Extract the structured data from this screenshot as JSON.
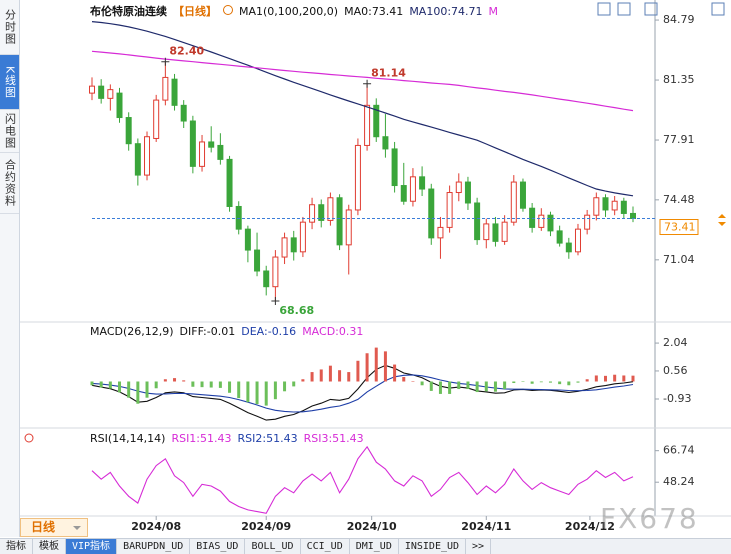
{
  "sidebar_tabs": [
    "分时图",
    "K线图",
    "闪电图",
    "合约资料"
  ],
  "active_sidebar_tab": 1,
  "chart_data": [
    {
      "type": "candlestick",
      "title": "布伦特原油连续",
      "period_label": "【日线】",
      "indicator": "MA1(0,100,200,0)",
      "ma0": {
        "label": "MA0:",
        "current": 73.41
      },
      "xlim": [
        0,
        59
      ],
      "ylim": [
        67.59,
        85.94
      ],
      "yticks": [
        84.79,
        81.35,
        77.91,
        74.48,
        71.04
      ],
      "xticks": [
        {
          "value": 7,
          "label": "2024/08"
        },
        {
          "value": 19,
          "label": "2024/09"
        },
        {
          "value": 30.5,
          "label": "2024/10"
        },
        {
          "value": 43,
          "label": "2024/11"
        },
        {
          "value": 54.3,
          "label": "2024/12"
        }
      ],
      "up_color": "#e03c31",
      "down_color": "#3aa53a",
      "candles": {
        "open": [
          80.6,
          81.0,
          80.3,
          80.6,
          79.2,
          77.7,
          75.9,
          78.0,
          80.2,
          81.4,
          79.9,
          79.0,
          76.4,
          77.8,
          77.6,
          76.8,
          74.1,
          72.8,
          71.6,
          70.4,
          69.5,
          71.2,
          72.3,
          71.5,
          73.2,
          74.2,
          73.3,
          74.6,
          71.9,
          73.9,
          77.6,
          79.9,
          78.1,
          77.4,
          75.3,
          74.4,
          75.8,
          75.1,
          72.3,
          72.9,
          74.9,
          75.5,
          74.3,
          72.2,
          73.1,
          72.1,
          73.2,
          75.5,
          74.0,
          72.9,
          73.6,
          72.7,
          72.0,
          71.5,
          72.8,
          73.6,
          74.6,
          73.9,
          74.4,
          73.7
        ],
        "high": [
          81.5,
          81.4,
          81.1,
          80.9,
          79.5,
          78.0,
          78.4,
          80.5,
          82.4,
          81.7,
          80.2,
          79.3,
          78.2,
          78.7,
          78.3,
          77.0,
          74.4,
          73.0,
          72.6,
          70.7,
          71.6,
          72.6,
          72.7,
          73.5,
          74.6,
          74.5,
          74.9,
          74.8,
          74.2,
          78.0,
          81.14,
          80.3,
          79.4,
          77.8,
          76.6,
          76.3,
          76.4,
          75.4,
          73.5,
          75.3,
          76.0,
          75.8,
          74.6,
          73.4,
          73.5,
          73.6,
          75.9,
          75.7,
          74.3,
          74.0,
          73.8,
          73.0,
          72.3,
          73.1,
          73.9,
          74.9,
          74.8,
          74.7,
          74.6,
          74.1
        ],
        "low": [
          80.2,
          80.0,
          79.6,
          78.9,
          77.3,
          75.3,
          75.6,
          77.8,
          79.9,
          79.6,
          78.6,
          76.0,
          76.1,
          77.2,
          76.5,
          73.8,
          72.5,
          70.9,
          70.1,
          69.0,
          68.68,
          70.8,
          71.0,
          71.2,
          72.8,
          72.9,
          73.0,
          71.6,
          70.2,
          73.6,
          77.3,
          77.8,
          76.9,
          74.9,
          74.2,
          74.1,
          74.7,
          71.9,
          71.1,
          72.6,
          74.4,
          73.9,
          71.9,
          71.7,
          71.8,
          71.9,
          73.0,
          73.8,
          72.6,
          72.7,
          72.4,
          71.8,
          71.1,
          71.3,
          72.5,
          73.3,
          73.5,
          73.6,
          73.4,
          73.2
        ],
        "close": [
          81.0,
          80.3,
          80.8,
          79.2,
          77.7,
          75.9,
          78.1,
          80.2,
          81.5,
          79.9,
          79.0,
          76.4,
          77.8,
          77.5,
          76.8,
          74.1,
          72.8,
          71.6,
          70.4,
          69.5,
          71.2,
          72.3,
          71.5,
          73.2,
          74.2,
          73.3,
          74.6,
          71.9,
          73.9,
          77.6,
          79.9,
          78.1,
          77.4,
          75.3,
          74.4,
          75.8,
          75.1,
          72.3,
          72.9,
          74.9,
          75.5,
          74.3,
          72.2,
          73.1,
          72.1,
          73.2,
          75.5,
          74.0,
          72.9,
          73.6,
          72.7,
          72.0,
          71.5,
          72.8,
          73.6,
          74.6,
          73.9,
          74.4,
          73.7,
          73.41
        ]
      },
      "series": [
        {
          "label": "MA100:",
          "current": 74.71,
          "color": "#1f2a6b",
          "values": [
            84.7,
            84.65,
            84.58,
            84.5,
            84.4,
            84.28,
            84.15,
            84.0,
            83.85,
            83.68,
            83.5,
            83.32,
            83.14,
            82.96,
            82.77,
            82.58,
            82.39,
            82.2,
            82.0,
            81.8,
            81.6,
            81.41,
            81.22,
            81.04,
            80.86,
            80.68,
            80.5,
            80.32,
            80.15,
            79.98,
            79.81,
            79.64,
            79.46,
            79.28,
            79.1,
            78.95,
            78.8,
            78.65,
            78.5,
            78.35,
            78.2,
            78.05,
            77.9,
            77.68,
            77.46,
            77.24,
            77.02,
            76.8,
            76.6,
            76.4,
            76.18,
            75.96,
            75.74,
            75.52,
            75.3,
            75.1,
            74.98,
            74.88,
            74.79,
            74.71
          ]
        },
        {
          "label": "M",
          "color": "#d62bd6",
          "values": [
            83.0,
            82.95,
            82.9,
            82.85,
            82.79,
            82.73,
            82.67,
            82.61,
            82.55,
            82.5,
            82.45,
            82.4,
            82.35,
            82.3,
            82.25,
            82.2,
            82.15,
            82.1,
            82.05,
            82.0,
            81.95,
            81.9,
            81.85,
            81.8,
            81.76,
            81.72,
            81.67,
            81.63,
            81.58,
            81.54,
            81.5,
            81.45,
            81.41,
            81.37,
            81.32,
            81.28,
            81.23,
            81.18,
            81.14,
            81.1,
            81.04,
            80.97,
            80.9,
            80.84,
            80.77,
            80.7,
            80.64,
            80.57,
            80.5,
            80.42,
            80.34,
            80.26,
            80.18,
            80.1,
            80.02,
            79.94,
            79.85,
            79.77,
            79.68,
            79.6
          ]
        }
      ],
      "annotations": [
        {
          "x": 8,
          "value": 82.4,
          "label": "82.40",
          "color": "#c0392b",
          "at": "high"
        },
        {
          "x": 30,
          "value": 81.14,
          "label": "81.14",
          "color": "#c0392b",
          "at": "high"
        },
        {
          "x": 20,
          "value": 68.68,
          "label": "68.68",
          "color": "#3aa53a",
          "at": "low"
        }
      ],
      "last_price": 73.41,
      "last_price_color": "#f08a00",
      "last_line_color": "#3b7dd8"
    },
    {
      "type": "macd",
      "title": "MACD(26,12,9)",
      "xlim": [
        0,
        59
      ],
      "ylim": [
        -2.31,
        3.0
      ],
      "yticks": [
        2.04,
        0.56,
        -0.93
      ],
      "series": [
        {
          "label": "DIFF:",
          "current": -0.01,
          "color": "#111111",
          "values": [
            -0.2,
            -0.3,
            -0.38,
            -0.55,
            -0.8,
            -1.1,
            -1.05,
            -0.85,
            -0.6,
            -0.55,
            -0.6,
            -0.8,
            -0.85,
            -0.9,
            -0.95,
            -1.15,
            -1.4,
            -1.65,
            -1.85,
            -2.05,
            -2.0,
            -1.85,
            -1.75,
            -1.55,
            -1.3,
            -1.15,
            -0.95,
            -1.0,
            -0.9,
            -0.4,
            0.2,
            0.65,
            0.85,
            0.7,
            0.45,
            0.35,
            0.2,
            -0.05,
            -0.25,
            -0.35,
            -0.3,
            -0.35,
            -0.5,
            -0.55,
            -0.62,
            -0.6,
            -0.45,
            -0.42,
            -0.48,
            -0.45,
            -0.47,
            -0.52,
            -0.58,
            -0.52,
            -0.42,
            -0.28,
            -0.22,
            -0.12,
            -0.08,
            -0.01
          ]
        },
        {
          "label": "DEA:",
          "current": -0.16,
          "color": "#1f3fa8",
          "values": [
            -0.1,
            -0.14,
            -0.19,
            -0.26,
            -0.37,
            -0.51,
            -0.62,
            -0.67,
            -0.66,
            -0.64,
            -0.63,
            -0.66,
            -0.7,
            -0.74,
            -0.78,
            -0.85,
            -0.96,
            -1.1,
            -1.25,
            -1.41,
            -1.53,
            -1.59,
            -1.62,
            -1.61,
            -1.55,
            -1.47,
            -1.37,
            -1.3,
            -1.15,
            -0.95,
            -0.55,
            -0.25,
            0.05,
            0.25,
            0.33,
            0.35,
            0.3,
            0.2,
            0.08,
            -0.02,
            -0.1,
            -0.15,
            -0.22,
            -0.29,
            -0.35,
            -0.4,
            -0.41,
            -0.41,
            -0.42,
            -0.43,
            -0.44,
            -0.45,
            -0.48,
            -0.49,
            -0.48,
            -0.44,
            -0.37,
            -0.3,
            -0.24,
            -0.16
          ]
        },
        {
          "label": "MACD:",
          "current": 0.31,
          "color": "#d62bd6",
          "bars": true,
          "up_color": "#e05a4f",
          "down_color": "#6cbf5a",
          "values": [
            -0.2,
            -0.32,
            -0.38,
            -0.58,
            -0.86,
            -1.18,
            -0.86,
            -0.36,
            0.12,
            0.18,
            0.06,
            -0.28,
            -0.3,
            -0.32,
            -0.34,
            -0.6,
            -0.88,
            -1.1,
            -1.2,
            -1.28,
            -0.94,
            -0.52,
            -0.26,
            0.12,
            0.5,
            0.64,
            0.84,
            0.6,
            0.5,
            1.1,
            1.5,
            1.8,
            1.6,
            0.9,
            0.24,
            0.0,
            -0.2,
            -0.5,
            -0.66,
            -0.66,
            -0.4,
            -0.4,
            -0.56,
            -0.52,
            -0.54,
            -0.4,
            -0.08,
            -0.02,
            -0.12,
            -0.04,
            -0.06,
            -0.14,
            -0.2,
            -0.06,
            0.12,
            0.32,
            0.3,
            0.36,
            0.32,
            0.31
          ]
        }
      ]
    },
    {
      "type": "line",
      "title": "RSI(14,14,14)",
      "xlim": [
        0,
        59
      ],
      "ylim": [
        29,
        77.7
      ],
      "yticks": [
        66.74,
        48.24
      ],
      "series": [
        {
          "label": "RSI1:",
          "current": 51.43,
          "color": "#d62bd6",
          "values": [
            55,
            50,
            54,
            46,
            40,
            36,
            50,
            58,
            62,
            52,
            48,
            40,
            47,
            46,
            43,
            37,
            34,
            32,
            31,
            30,
            40,
            45,
            42,
            49,
            53,
            49,
            54,
            42,
            50,
            62,
            69,
            60,
            56,
            49,
            46,
            52,
            49,
            40,
            44,
            51,
            54,
            48,
            41,
            46,
            42,
            47,
            56,
            49,
            44,
            48,
            45,
            43,
            41,
            47,
            50,
            55,
            51,
            54,
            49,
            51.43
          ]
        },
        {
          "label": "RSI2:",
          "current": 51.43,
          "color": "#1f3fa8"
        },
        {
          "label": "RSI3:",
          "current": 51.43,
          "color": "#d62bd6"
        }
      ]
    }
  ],
  "period_selector": "日线",
  "indicator_tabs": [
    "指标",
    "模板",
    "VIP指标",
    "BARUPDN_UD",
    "BIAS_UD",
    "BOLL_UD",
    "CCI_UD",
    "DMI_UD",
    "INSIDE_UD",
    ">>"
  ],
  "active_indicator_tab": 2,
  "watermark": "FX678"
}
